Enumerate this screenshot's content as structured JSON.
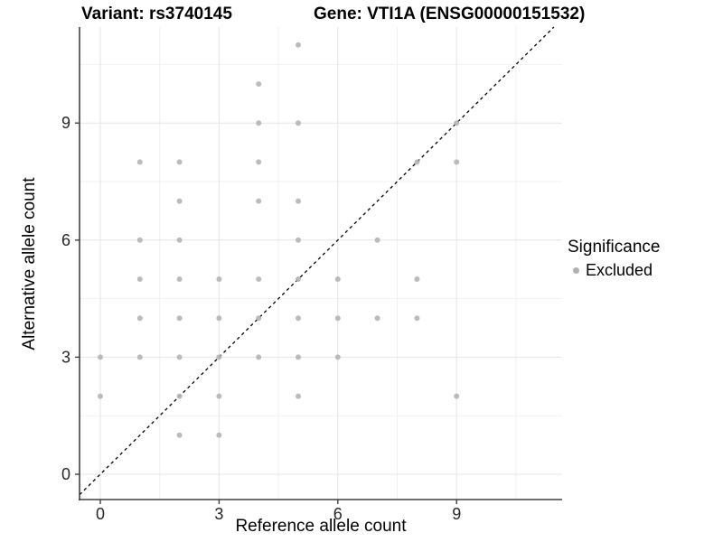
{
  "header": {
    "title_left": "Variant: rs3740145",
    "title_right": "Gene: VTI1A (ENSG00000151532)"
  },
  "chart_data": {
    "type": "scatter",
    "title_left": "Variant: rs3740145",
    "title_right": "Gene: VTI1A (ENSG00000151532)",
    "xlabel": "Reference allele count",
    "ylabel": "Alternative allele count",
    "x_breaks": [
      0,
      3,
      6,
      9
    ],
    "y_breaks": [
      0,
      3,
      6,
      9
    ],
    "xlim": [
      -0.55,
      11.65
    ],
    "ylim": [
      -0.65,
      11.45
    ],
    "grid": "major gridlines at breaks, minor gridlines at +1.5 offsets, light gray on white",
    "legend_position": "right",
    "legend": {
      "title": "Significance",
      "items": [
        {
          "label": "Excluded",
          "color": "#b0b0b0"
        }
      ]
    },
    "identity_line": {
      "slope": 1,
      "intercept": 0,
      "style": "dashed",
      "color": "#000000"
    },
    "point_color": "#b4b4b4",
    "series": [
      {
        "name": "Excluded",
        "points": [
          [
            0,
            2
          ],
          [
            0,
            3
          ],
          [
            1,
            3
          ],
          [
            1,
            4
          ],
          [
            1,
            5
          ],
          [
            1,
            6
          ],
          [
            1,
            8
          ],
          [
            2,
            1
          ],
          [
            2,
            2
          ],
          [
            2,
            3
          ],
          [
            2,
            4
          ],
          [
            2,
            5
          ],
          [
            2,
            6
          ],
          [
            2,
            7
          ],
          [
            2,
            8
          ],
          [
            3,
            1
          ],
          [
            3,
            2
          ],
          [
            3,
            3
          ],
          [
            3,
            4
          ],
          [
            3,
            5
          ],
          [
            4,
            3
          ],
          [
            4,
            4
          ],
          [
            4,
            5
          ],
          [
            4,
            7
          ],
          [
            4,
            8
          ],
          [
            4,
            9
          ],
          [
            4,
            10
          ],
          [
            5,
            2
          ],
          [
            5,
            3
          ],
          [
            5,
            4
          ],
          [
            5,
            5
          ],
          [
            5,
            6
          ],
          [
            5,
            7
          ],
          [
            5,
            9
          ],
          [
            5,
            11
          ],
          [
            6,
            3
          ],
          [
            6,
            4
          ],
          [
            6,
            5
          ],
          [
            7,
            4
          ],
          [
            7,
            6
          ],
          [
            8,
            4
          ],
          [
            8,
            5
          ],
          [
            8,
            8
          ],
          [
            9,
            2
          ],
          [
            9,
            8
          ],
          [
            9,
            9
          ]
        ]
      }
    ],
    "colors": {
      "grid_major": "#e4e4e4",
      "grid_minor": "#f1f1f1",
      "axis_line": "#404040",
      "tick_text": "#262626"
    }
  }
}
